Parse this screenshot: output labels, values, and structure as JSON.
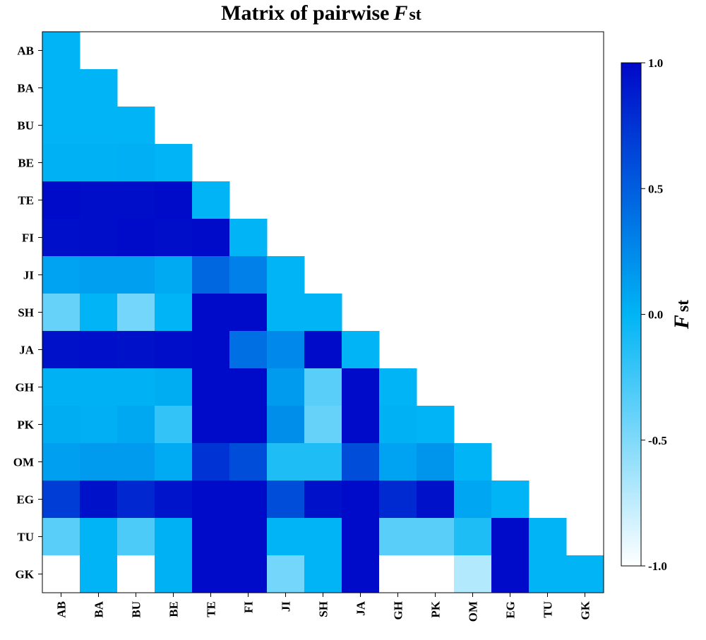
{
  "title": {
    "main": "Matrix of pairwise",
    "italic": "F",
    "sub": "st"
  },
  "colorbar": {
    "label_italic": "F",
    "label_sub": "st",
    "ticks": [
      "1.0",
      "0.5",
      "0.0",
      "-0.5",
      "-1.0"
    ],
    "tick_values": [
      1.0,
      0.5,
      0.0,
      -0.5,
      -1.0
    ],
    "range": [
      -1.0,
      1.0
    ],
    "colors": {
      "low": "#ffffff",
      "mid": "#00b4f5",
      "high": "#0008c8"
    }
  },
  "chart_data": {
    "type": "heatmap",
    "title": "Matrix of pairwise F st",
    "xlabel": "",
    "ylabel": "",
    "rows": [
      "AB",
      "BA",
      "BU",
      "BE",
      "TE",
      "FI",
      "JI",
      "SH",
      "JA",
      "GH",
      "PK",
      "OM",
      "EG",
      "TU",
      "GK"
    ],
    "cols": [
      "AB",
      "BA",
      "BU",
      "BE",
      "TE",
      "FI",
      "JI",
      "SH",
      "JA",
      "GH",
      "PK",
      "OM",
      "EG",
      "TU",
      "GK"
    ],
    "value_range": [
      -1.0,
      1.0
    ],
    "values": [
      [
        0.0
      ],
      [
        0.0,
        0.0
      ],
      [
        0.0,
        0.0,
        0.0
      ],
      [
        0.02,
        0.02,
        0.03,
        0.0
      ],
      [
        0.98,
        0.97,
        0.97,
        0.98,
        0.0
      ],
      [
        0.96,
        0.97,
        0.98,
        0.97,
        0.98,
        0.0
      ],
      [
        0.1,
        0.12,
        0.12,
        0.06,
        0.45,
        0.3,
        0.0
      ],
      [
        -0.4,
        0.0,
        -0.45,
        0.0,
        0.98,
        0.98,
        0.0,
        0.0
      ],
      [
        0.95,
        0.96,
        0.95,
        0.97,
        0.98,
        0.4,
        0.25,
        0.98,
        0.0
      ],
      [
        0.02,
        0.02,
        0.02,
        0.04,
        0.98,
        0.98,
        0.15,
        -0.35,
        0.98,
        0.0
      ],
      [
        0.04,
        0.03,
        0.07,
        -0.2,
        0.98,
        0.98,
        0.22,
        -0.4,
        0.98,
        0.02,
        0.0
      ],
      [
        0.12,
        0.15,
        0.15,
        0.05,
        0.75,
        0.6,
        -0.12,
        -0.12,
        0.6,
        0.1,
        0.18,
        0.0
      ],
      [
        0.7,
        0.95,
        0.82,
        0.93,
        0.98,
        0.98,
        0.6,
        0.95,
        0.98,
        0.8,
        0.95,
        0.08,
        0.0
      ],
      [
        -0.35,
        0.0,
        -0.3,
        0.02,
        0.98,
        0.98,
        0.0,
        0.0,
        0.98,
        -0.35,
        -0.35,
        -0.12,
        0.98,
        0.0
      ],
      [
        -1.0,
        0.0,
        -1.0,
        0.02,
        0.98,
        0.98,
        -0.45,
        0.0,
        0.98,
        -1.0,
        -1.0,
        -0.7,
        0.98,
        0.0,
        0.0
      ]
    ],
    "legend": "colorbar-right",
    "grid": false
  }
}
